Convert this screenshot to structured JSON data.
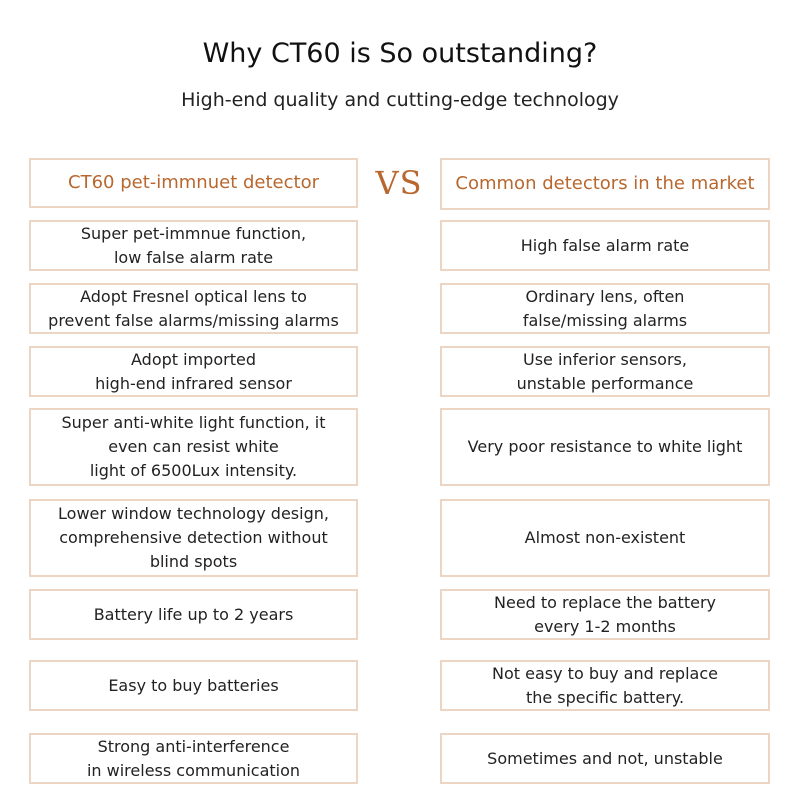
{
  "heading": {
    "title": "Why CT60 is So outstanding?",
    "subtitle": "High-end quality and cutting-edge technology"
  },
  "comparison": {
    "left_header": "CT60 pet-immnuet detector",
    "vs_label": "VS",
    "right_header": "Common detectors in the market",
    "accent_color": "#b8672e",
    "border_color": "#ecd6c3",
    "rows": [
      {
        "left": "Super pet-immnue function,\nlow false alarm rate",
        "right": "High false alarm rate"
      },
      {
        "left": "Adopt Fresnel optical lens to\nprevent false alarms/missing alarms",
        "right": "Ordinary lens, often\nfalse/missing alarms"
      },
      {
        "left": "Adopt imported\nhigh-end infrared sensor",
        "right": "Use inferior sensors,\nunstable performance"
      },
      {
        "left": "Super anti-white light function, it\neven can resist white\nlight of 6500Lux intensity.",
        "right": "Very poor resistance to white light"
      },
      {
        "left": "Lower window technology design,\ncomprehensive detection without\nblind spots",
        "right": "Almost non-existent"
      },
      {
        "left": "Battery life up to 2 years",
        "right": "Need to replace the battery\nevery 1-2 months"
      },
      {
        "left": "Easy to buy batteries",
        "right": "Not easy to buy and replace\nthe specific battery."
      },
      {
        "left": "Strong anti-interference\nin wireless communication",
        "right": "Sometimes and not, unstable"
      }
    ]
  }
}
